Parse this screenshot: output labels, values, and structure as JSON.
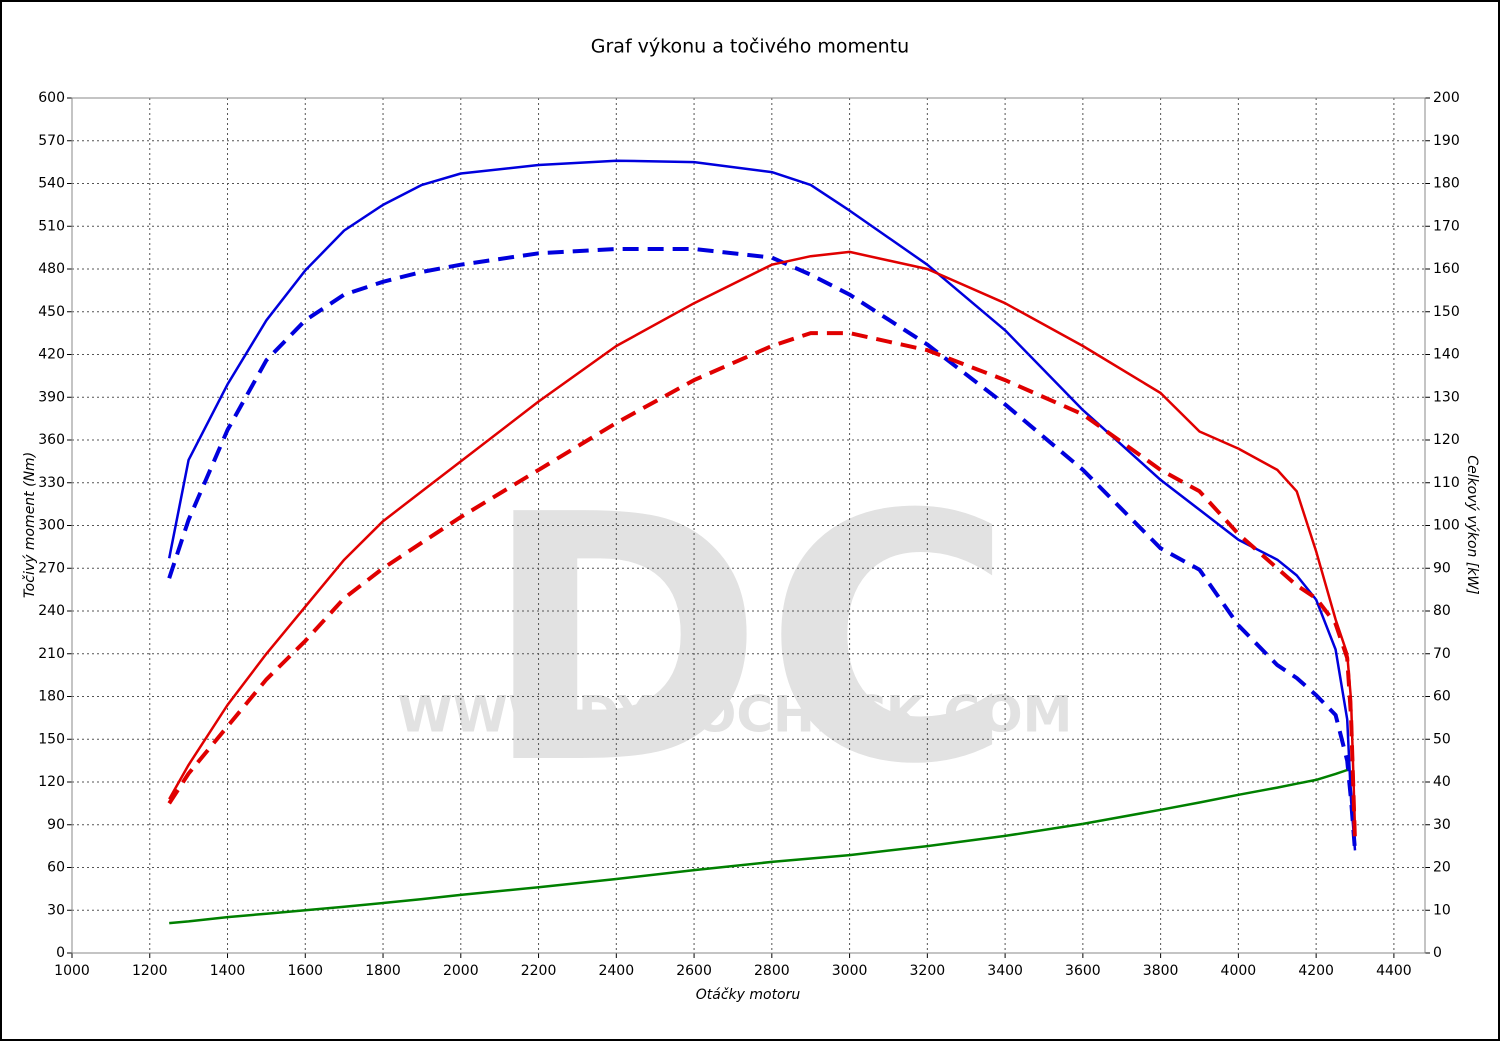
{
  "chart_data": {
    "type": "line",
    "title": "Graf výkonu a točivého momentu",
    "x_label": "Otáčky motoru",
    "y_label": "Točivý moment (Nm)",
    "y2_label": "Celkový výkon [kW]",
    "watermark": "DC",
    "watermark_url": "WWW.DYNOCHECK.COM",
    "grid": true,
    "x": [
      1250,
      1300,
      1400,
      1500,
      1600,
      1700,
      1800,
      1900,
      2000,
      2200,
      2400,
      2600,
      2800,
      2900,
      3000,
      3200,
      3400,
      3600,
      3800,
      3900,
      4000,
      4100,
      4150,
      4200,
      4250,
      4280,
      4290,
      4300
    ],
    "xlim": [
      1000,
      4480
    ],
    "xticks": [
      1000,
      1200,
      1400,
      1600,
      1800,
      2000,
      2200,
      2400,
      2600,
      2800,
      3000,
      3200,
      3400,
      3600,
      3800,
      4000,
      4200,
      4400
    ],
    "ylim": [
      0,
      600
    ],
    "yticks": [
      0,
      30,
      60,
      90,
      120,
      150,
      180,
      210,
      240,
      270,
      300,
      330,
      360,
      390,
      420,
      450,
      480,
      510,
      540,
      570,
      600
    ],
    "y2lim": [
      0,
      200
    ],
    "y2ticks": [
      0,
      10,
      20,
      30,
      40,
      50,
      60,
      70,
      80,
      90,
      100,
      110,
      120,
      130,
      140,
      150,
      160,
      170,
      180,
      190,
      200
    ],
    "series": [
      {
        "color": "#0000dd",
        "dash": false,
        "axis": "y",
        "values": [
          277,
          346,
          399,
          444,
          479,
          507,
          525,
          539,
          547,
          553,
          556,
          555,
          548,
          539,
          521,
          483,
          437,
          381,
          332,
          311,
          290,
          276,
          265,
          248,
          213,
          164,
          107,
          72
        ]
      },
      {
        "color": "#0000dd",
        "dash": true,
        "axis": "y",
        "values": [
          263,
          304,
          367,
          416,
          444,
          462,
          471,
          478,
          483,
          491,
          494,
          494,
          488,
          476,
          462,
          427,
          385,
          339,
          284,
          269,
          230,
          202,
          193,
          181,
          167,
          135,
          107,
          72
        ]
      },
      {
        "color": "#e00000",
        "dash": false,
        "axis": "y2",
        "values": [
          36,
          44,
          58,
          70,
          81,
          92,
          101,
          108,
          115,
          129,
          142,
          152,
          161,
          163,
          164,
          160,
          152,
          142,
          131,
          122,
          118,
          113,
          108,
          94,
          78,
          70,
          59,
          29
        ]
      },
      {
        "color": "#e00000",
        "dash": true,
        "axis": "y2",
        "values": [
          35,
          42,
          53,
          64,
          73,
          83,
          90,
          96,
          102,
          113,
          124,
          134,
          142,
          145,
          145,
          141,
          134,
          126,
          113,
          108,
          98,
          90,
          86,
          83,
          77,
          69,
          55,
          26
        ]
      },
      {
        "color": "#008000",
        "dash": false,
        "axis": "y2",
        "values": [
          7,
          7.4,
          8.4,
          9.2,
          10,
          10.8,
          11.7,
          12.6,
          13.6,
          15.4,
          17.3,
          19.4,
          21.3,
          22.1,
          22.9,
          25,
          27.4,
          30.2,
          33.5,
          35.2,
          37,
          38.7,
          39.6,
          40.5,
          41.9,
          42.8,
          null,
          null
        ]
      }
    ]
  }
}
